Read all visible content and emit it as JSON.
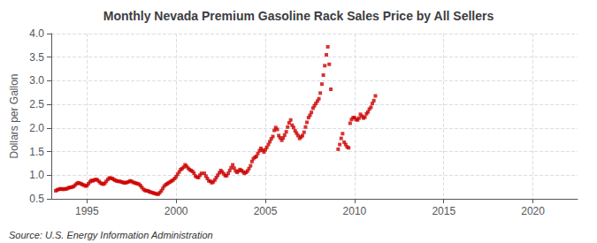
{
  "chart_data": {
    "type": "scatter",
    "title": "Monthly Nevada Premium Gasoline Rack Sales Price by All Sellers",
    "ylabel": "Dollars per Gallon",
    "annotations": [
      "Source: U.S. Energy Information Administration"
    ],
    "color": "#cc0000",
    "marker": "square",
    "grid": true,
    "xlim": [
      1993.0,
      2022.5
    ],
    "xticks": [
      1995,
      2000,
      2005,
      2010,
      2015,
      2020
    ],
    "ylim": [
      0.5,
      4.0
    ],
    "yticks": [
      0.5,
      {
        "value": 1.0,
        "label": "1.0"
      },
      1.5,
      {
        "value": 2.0,
        "label": "2.0"
      },
      2.5,
      {
        "value": 3.0,
        "label": "3.0"
      },
      3.5,
      {
        "value": 4.0,
        "label": "4.0"
      }
    ],
    "x": [
      1993.25,
      1993.33,
      1993.42,
      1993.5,
      1993.58,
      1993.67,
      1993.75,
      1993.83,
      1993.92,
      1994.0,
      1994.08,
      1994.17,
      1994.25,
      1994.33,
      1994.42,
      1994.5,
      1994.58,
      1994.67,
      1994.75,
      1994.83,
      1994.92,
      1995.0,
      1995.08,
      1995.17,
      1995.25,
      1995.33,
      1995.42,
      1995.5,
      1995.58,
      1995.67,
      1995.75,
      1995.83,
      1995.92,
      1996.0,
      1996.08,
      1996.17,
      1996.25,
      1996.33,
      1996.42,
      1996.5,
      1996.58,
      1996.67,
      1996.75,
      1996.83,
      1996.92,
      1997.0,
      1997.08,
      1997.17,
      1997.25,
      1997.33,
      1997.42,
      1997.5,
      1997.58,
      1997.67,
      1997.75,
      1997.83,
      1997.92,
      1998.0,
      1998.08,
      1998.17,
      1998.25,
      1998.33,
      1998.42,
      1998.5,
      1998.58,
      1998.67,
      1998.75,
      1998.83,
      1998.92,
      1999.0,
      1999.08,
      1999.17,
      1999.25,
      1999.33,
      1999.42,
      1999.5,
      1999.58,
      1999.67,
      1999.75,
      1999.83,
      1999.92,
      2000.0,
      2000.08,
      2000.17,
      2000.25,
      2000.33,
      2000.42,
      2000.5,
      2000.58,
      2000.67,
      2000.75,
      2000.83,
      2000.92,
      2001.0,
      2001.08,
      2001.17,
      2001.25,
      2001.33,
      2001.42,
      2001.58,
      2001.67,
      2001.75,
      2001.83,
      2001.92,
      2002.0,
      2002.08,
      2002.17,
      2002.25,
      2002.33,
      2002.42,
      2002.5,
      2002.58,
      2002.67,
      2002.75,
      2002.83,
      2002.92,
      2003.0,
      2003.08,
      2003.17,
      2003.25,
      2003.33,
      2003.42,
      2003.5,
      2003.58,
      2003.67,
      2003.75,
      2003.83,
      2003.92,
      2004.0,
      2004.08,
      2004.17,
      2004.25,
      2004.33,
      2004.42,
      2004.5,
      2004.58,
      2004.67,
      2004.75,
      2004.83,
      2004.92,
      2005.0,
      2005.08,
      2005.17,
      2005.25,
      2005.33,
      2005.42,
      2005.5,
      2005.58,
      2005.67,
      2005.75,
      2005.83,
      2005.92,
      2006.0,
      2006.08,
      2006.17,
      2006.25,
      2006.33,
      2006.42,
      2006.5,
      2006.58,
      2006.67,
      2006.75,
      2006.83,
      2006.92,
      2007.0,
      2007.08,
      2007.17,
      2007.25,
      2007.33,
      2007.42,
      2007.5,
      2007.58,
      2007.67,
      2007.75,
      2007.83,
      2007.92,
      2008.0,
      2008.08,
      2008.17,
      2008.25,
      2008.33,
      2008.42,
      2008.5,
      2008.58,
      2008.67,
      2009.08,
      2009.17,
      2009.25,
      2009.33,
      2009.42,
      2009.5,
      2009.58,
      2009.67,
      2009.75,
      2009.83,
      2009.92,
      2010.0,
      2010.08,
      2010.17,
      2010.25,
      2010.33,
      2010.42,
      2010.5,
      2010.58,
      2010.67,
      2010.75,
      2010.83,
      2010.92,
      2011.0,
      2011.08,
      2011.17
    ],
    "values": [
      0.67,
      0.69,
      0.7,
      0.71,
      0.71,
      0.7,
      0.71,
      0.71,
      0.72,
      0.74,
      0.74,
      0.75,
      0.76,
      0.79,
      0.82,
      0.84,
      0.83,
      0.82,
      0.8,
      0.79,
      0.77,
      0.78,
      0.82,
      0.86,
      0.89,
      0.88,
      0.9,
      0.91,
      0.9,
      0.87,
      0.84,
      0.82,
      0.81,
      0.83,
      0.87,
      0.91,
      0.94,
      0.94,
      0.93,
      0.91,
      0.89,
      0.88,
      0.87,
      0.87,
      0.86,
      0.85,
      0.84,
      0.84,
      0.85,
      0.86,
      0.88,
      0.87,
      0.85,
      0.84,
      0.83,
      0.82,
      0.81,
      0.78,
      0.74,
      0.7,
      0.68,
      0.67,
      0.67,
      0.65,
      0.64,
      0.63,
      0.62,
      0.61,
      0.6,
      0.6,
      0.63,
      0.67,
      0.72,
      0.77,
      0.8,
      0.82,
      0.84,
      0.86,
      0.88,
      0.9,
      0.93,
      0.97,
      1.02,
      1.07,
      1.12,
      1.14,
      1.17,
      1.22,
      1.19,
      1.15,
      1.12,
      1.1,
      1.08,
      1.04,
      0.98,
      0.96,
      0.95,
      1.0,
      1.04,
      1.04,
      0.98,
      0.93,
      0.88,
      0.87,
      0.84,
      0.86,
      0.9,
      0.95,
      1.0,
      1.05,
      1.1,
      1.07,
      1.03,
      0.99,
      0.99,
      1.04,
      1.1,
      1.16,
      1.22,
      1.15,
      1.09,
      1.06,
      1.09,
      1.12,
      1.1,
      1.07,
      1.04,
      1.06,
      1.09,
      1.14,
      1.2,
      1.29,
      1.35,
      1.38,
      1.4,
      1.46,
      1.52,
      1.57,
      1.53,
      1.49,
      1.54,
      1.59,
      1.65,
      1.71,
      1.77,
      1.82,
      1.95,
      2.01,
      1.97,
      1.84,
      1.79,
      1.74,
      1.79,
      1.85,
      1.92,
      2.02,
      2.11,
      2.17,
      2.06,
      2.01,
      1.94,
      1.89,
      1.84,
      1.78,
      1.81,
      1.84,
      1.91,
      2.02,
      2.12,
      2.22,
      2.27,
      2.33,
      2.42,
      2.47,
      2.52,
      2.57,
      2.62,
      2.74,
      2.93,
      3.12,
      3.32,
      3.55,
      3.72,
      3.35,
      2.82,
      1.55,
      1.65,
      1.78,
      1.88,
      1.7,
      1.65,
      1.6,
      1.58,
      2.1,
      2.18,
      2.22,
      2.22,
      2.18,
      2.17,
      2.21,
      2.29,
      2.25,
      2.21,
      2.23,
      2.3,
      2.34,
      2.4,
      2.44,
      2.52,
      2.58,
      2.68
    ]
  }
}
